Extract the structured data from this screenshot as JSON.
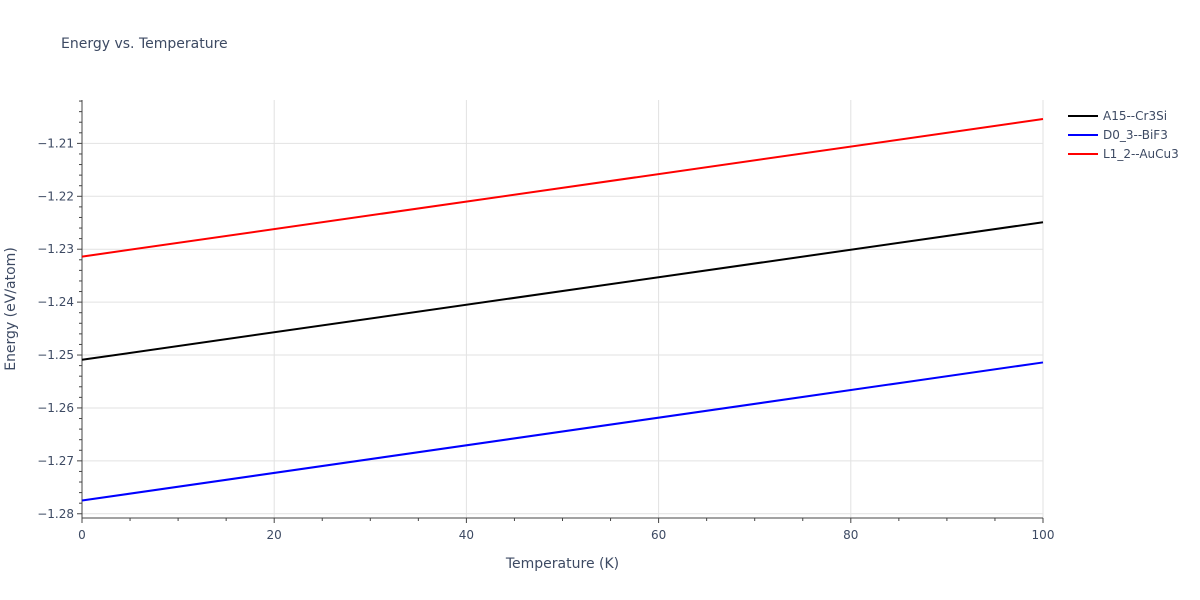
{
  "title": "Energy vs. Temperature",
  "chart_data": {
    "type": "line",
    "title": "Energy vs. Temperature",
    "xlabel": "Temperature (K)",
    "ylabel": "Energy (eV/atom)",
    "xlim": [
      0,
      100
    ],
    "ylim": [
      -1.2808,
      -1.2018
    ],
    "x_ticks": [
      0,
      20,
      40,
      60,
      80,
      100
    ],
    "x_tick_labels": [
      "0",
      "20",
      "40",
      "60",
      "80",
      "100"
    ],
    "y_ticks": [
      -1.28,
      -1.27,
      -1.26,
      -1.25,
      -1.24,
      -1.23,
      -1.22,
      -1.21
    ],
    "y_tick_labels": [
      "−1.28",
      "−1.27",
      "−1.26",
      "−1.25",
      "−1.24",
      "−1.23",
      "−1.22",
      "−1.21"
    ],
    "grid": true,
    "legend_position": "top-right, outside plot",
    "series": [
      {
        "name": "A15--Cr3Si",
        "color": "#000000",
        "x": [
          0,
          100
        ],
        "y": [
          -1.2509,
          -1.2249
        ]
      },
      {
        "name": "D0_3--BiF3",
        "color": "#0000ff",
        "x": [
          0,
          100
        ],
        "y": [
          -1.2775,
          -1.2514
        ]
      },
      {
        "name": "L1_2--AuCu3",
        "color": "#ff0000",
        "x": [
          0,
          100
        ],
        "y": [
          -1.2314,
          -1.2054
        ]
      }
    ]
  }
}
